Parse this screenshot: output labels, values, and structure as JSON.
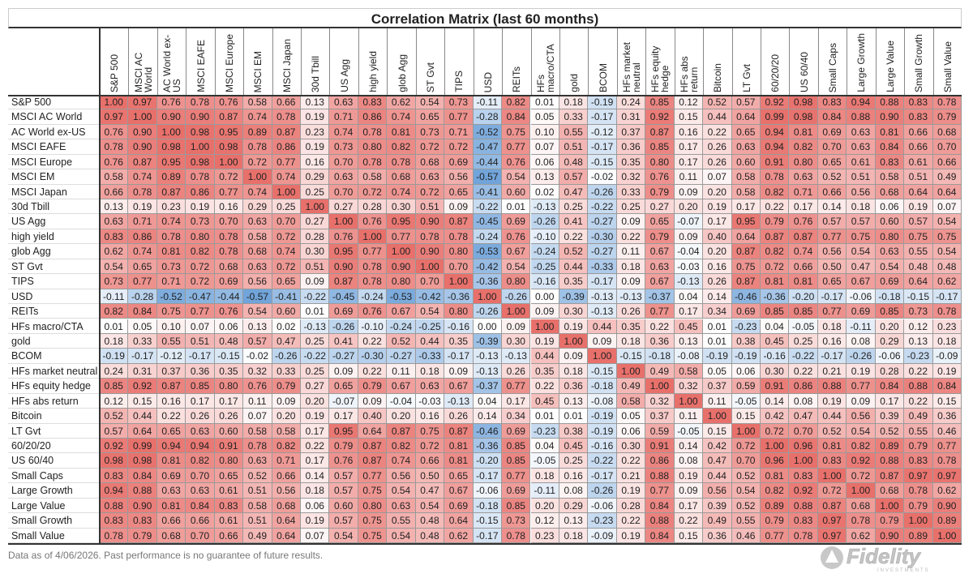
{
  "chart_data": {
    "type": "heatmap",
    "title": "Correlation Matrix (last 60 months)",
    "labels": [
      "S&P 500",
      "MSCI AC World",
      "AC World ex-US",
      "MSCI EAFE",
      "MSCI Europe",
      "MSCI EM",
      "MSCI Japan",
      "30d Tbill",
      "US Agg",
      "high yield",
      "glob Agg",
      "ST Gvt",
      "TIPS",
      "USD",
      "REITs",
      "HFs macro/CTA",
      "gold",
      "BCOM",
      "HFs market neutral",
      "HFs equity hedge",
      "HFs abs return",
      "Bitcoin",
      "LT Gvt",
      "60/20/20",
      "US 60/40",
      "Small Caps",
      "Large Growth",
      "Large Value",
      "Small Growth",
      "Small Value"
    ],
    "column_labels": [
      "S&P 500",
      "MSCI AC World",
      "AC World ex-US",
      "MSCI EAFE",
      "MSCI Europe",
      "MSCI EM",
      "MSCI Japan",
      "30d Tbill",
      "US Agg",
      "high yield",
      "glob Agg",
      "ST Gvt",
      "TIPS",
      "USD",
      "REITs",
      "HFs macro/CTA",
      "gold",
      "BCOM",
      "HFs market neutral",
      "HFs equity hedge",
      "HFs abs return",
      "Bitcoin",
      "LT Gvt",
      "60/20/20",
      "US 60/40",
      "Small Caps",
      "Large Growth",
      "Large Value",
      "Small Growth",
      "Small Value"
    ],
    "values": [
      [
        1.0,
        0.97,
        0.76,
        0.78,
        0.76,
        0.58,
        0.66,
        0.13,
        0.63,
        0.83,
        0.62,
        0.54,
        0.73,
        -0.11,
        0.82,
        0.01,
        0.18,
        -0.19,
        0.24,
        0.85,
        0.12,
        0.52,
        0.57,
        0.92,
        0.98,
        0.83,
        0.94,
        0.88,
        0.83,
        0.78
      ],
      [
        0.97,
        1.0,
        0.9,
        0.9,
        0.87,
        0.74,
        0.78,
        0.19,
        0.71,
        0.86,
        0.74,
        0.65,
        0.77,
        -0.28,
        0.84,
        0.05,
        0.33,
        -0.17,
        0.31,
        0.92,
        0.15,
        0.44,
        0.64,
        0.99,
        0.98,
        0.84,
        0.88,
        0.9,
        0.83,
        0.79
      ],
      [
        0.76,
        0.9,
        1.0,
        0.98,
        0.95,
        0.89,
        0.87,
        0.23,
        0.74,
        0.78,
        0.81,
        0.73,
        0.71,
        -0.52,
        0.75,
        0.1,
        0.55,
        -0.12,
        0.37,
        0.87,
        0.16,
        0.22,
        0.65,
        0.94,
        0.81,
        0.69,
        0.63,
        0.81,
        0.66,
        0.68
      ],
      [
        0.78,
        0.9,
        0.98,
        1.0,
        0.98,
        0.78,
        0.86,
        0.19,
        0.73,
        0.8,
        0.82,
        0.72,
        0.72,
        -0.47,
        0.77,
        0.07,
        0.51,
        -0.17,
        0.36,
        0.85,
        0.17,
        0.26,
        0.63,
        0.94,
        0.82,
        0.7,
        0.63,
        0.84,
        0.66,
        0.7
      ],
      [
        0.76,
        0.87,
        0.95,
        0.98,
        1.0,
        0.72,
        0.77,
        0.16,
        0.7,
        0.78,
        0.78,
        0.68,
        0.69,
        -0.44,
        0.76,
        0.06,
        0.48,
        -0.15,
        0.35,
        0.8,
        0.17,
        0.26,
        0.6,
        0.91,
        0.8,
        0.65,
        0.61,
        0.83,
        0.61,
        0.66
      ],
      [
        0.58,
        0.74,
        0.89,
        0.78,
        0.72,
        1.0,
        0.74,
        0.29,
        0.63,
        0.58,
        0.68,
        0.63,
        0.56,
        -0.57,
        0.54,
        0.13,
        0.57,
        -0.02,
        0.32,
        0.76,
        0.11,
        0.07,
        0.58,
        0.78,
        0.63,
        0.52,
        0.51,
        0.58,
        0.51,
        0.49
      ],
      [
        0.66,
        0.78,
        0.87,
        0.86,
        0.77,
        0.74,
        1.0,
        0.25,
        0.7,
        0.72,
        0.74,
        0.72,
        0.65,
        -0.41,
        0.6,
        0.02,
        0.47,
        -0.26,
        0.33,
        0.79,
        0.09,
        0.2,
        0.58,
        0.82,
        0.71,
        0.66,
        0.56,
        0.68,
        0.64,
        0.64
      ],
      [
        0.13,
        0.19,
        0.23,
        0.19,
        0.16,
        0.29,
        0.25,
        1.0,
        0.27,
        0.28,
        0.3,
        0.51,
        0.09,
        -0.22,
        0.01,
        -0.13,
        0.25,
        -0.22,
        0.25,
        0.27,
        0.2,
        0.19,
        0.17,
        0.22,
        0.17,
        0.14,
        0.18,
        0.06,
        0.19,
        0.07
      ],
      [
        0.63,
        0.71,
        0.74,
        0.73,
        0.7,
        0.63,
        0.7,
        0.27,
        1.0,
        0.76,
        0.95,
        0.9,
        0.87,
        -0.45,
        0.69,
        -0.26,
        0.41,
        -0.27,
        0.09,
        0.65,
        -0.07,
        0.17,
        0.95,
        0.79,
        0.76,
        0.57,
        0.57,
        0.6,
        0.57,
        0.54
      ],
      [
        0.83,
        0.86,
        0.78,
        0.8,
        0.78,
        0.58,
        0.72,
        0.28,
        0.76,
        1.0,
        0.77,
        0.78,
        0.78,
        -0.24,
        0.76,
        -0.1,
        0.22,
        -0.3,
        0.22,
        0.79,
        0.09,
        0.4,
        0.64,
        0.87,
        0.87,
        0.77,
        0.75,
        0.8,
        0.75,
        0.75
      ],
      [
        0.62,
        0.74,
        0.81,
        0.82,
        0.78,
        0.68,
        0.74,
        0.3,
        0.95,
        0.77,
        1.0,
        0.9,
        0.8,
        -0.53,
        0.67,
        -0.24,
        0.52,
        -0.27,
        0.11,
        0.67,
        -0.04,
        0.2,
        0.87,
        0.82,
        0.74,
        0.56,
        0.54,
        0.63,
        0.55,
        0.54
      ],
      [
        0.54,
        0.65,
        0.73,
        0.72,
        0.68,
        0.63,
        0.72,
        0.51,
        0.9,
        0.78,
        0.9,
        1.0,
        0.7,
        -0.42,
        0.54,
        -0.25,
        0.44,
        -0.33,
        0.18,
        0.63,
        -0.03,
        0.16,
        0.75,
        0.72,
        0.66,
        0.5,
        0.47,
        0.54,
        0.48,
        0.48
      ],
      [
        0.73,
        0.77,
        0.71,
        0.72,
        0.69,
        0.56,
        0.65,
        0.09,
        0.87,
        0.78,
        0.8,
        0.7,
        1.0,
        -0.36,
        0.8,
        -0.16,
        0.35,
        -0.17,
        0.09,
        0.67,
        -0.13,
        0.26,
        0.87,
        0.81,
        0.81,
        0.65,
        0.67,
        0.69,
        0.64,
        0.62
      ],
      [
        -0.11,
        -0.28,
        -0.52,
        -0.47,
        -0.44,
        -0.57,
        -0.41,
        -0.22,
        -0.45,
        -0.24,
        -0.53,
        -0.42,
        -0.36,
        1.0,
        -0.26,
        0.0,
        -0.39,
        -0.13,
        -0.13,
        -0.37,
        0.04,
        0.14,
        -0.46,
        -0.36,
        -0.2,
        -0.17,
        -0.06,
        -0.18,
        -0.15,
        -0.17
      ],
      [
        0.82,
        0.84,
        0.75,
        0.77,
        0.76,
        0.54,
        0.6,
        0.01,
        0.69,
        0.76,
        0.67,
        0.54,
        0.8,
        -0.26,
        1.0,
        0.09,
        0.3,
        -0.13,
        0.26,
        0.77,
        0.17,
        0.34,
        0.69,
        0.85,
        0.85,
        0.77,
        0.69,
        0.85,
        0.73,
        0.78
      ],
      [
        0.01,
        0.05,
        0.1,
        0.07,
        0.06,
        0.13,
        0.02,
        -0.13,
        -0.26,
        -0.1,
        -0.24,
        -0.25,
        -0.16,
        0.0,
        0.09,
        1.0,
        0.19,
        0.44,
        0.35,
        0.22,
        0.45,
        0.01,
        -0.23,
        0.04,
        -0.05,
        0.18,
        -0.11,
        0.2,
        0.12,
        0.23
      ],
      [
        0.18,
        0.33,
        0.55,
        0.51,
        0.48,
        0.57,
        0.47,
        0.25,
        0.41,
        0.22,
        0.52,
        0.44,
        0.35,
        -0.39,
        0.3,
        0.19,
        1.0,
        0.09,
        0.18,
        0.36,
        0.13,
        0.01,
        0.38,
        0.45,
        0.25,
        0.16,
        0.08,
        0.29,
        0.13,
        0.18
      ],
      [
        -0.19,
        -0.17,
        -0.12,
        -0.17,
        -0.15,
        -0.02,
        -0.26,
        -0.22,
        -0.27,
        -0.3,
        -0.27,
        -0.33,
        -0.17,
        -0.13,
        -0.13,
        0.44,
        0.09,
        1.0,
        -0.15,
        -0.18,
        -0.08,
        -0.19,
        -0.19,
        -0.16,
        -0.22,
        -0.17,
        -0.26,
        -0.06,
        -0.23,
        -0.09
      ],
      [
        0.24,
        0.31,
        0.37,
        0.36,
        0.35,
        0.32,
        0.33,
        0.25,
        0.09,
        0.22,
        0.11,
        0.18,
        0.09,
        -0.13,
        0.26,
        0.35,
        0.18,
        -0.15,
        1.0,
        0.49,
        0.58,
        0.05,
        0.06,
        0.3,
        0.22,
        0.21,
        0.19,
        0.28,
        0.22,
        0.19
      ],
      [
        0.85,
        0.92,
        0.87,
        0.85,
        0.8,
        0.76,
        0.79,
        0.27,
        0.65,
        0.79,
        0.67,
        0.63,
        0.67,
        -0.37,
        0.77,
        0.22,
        0.36,
        -0.18,
        0.49,
        1.0,
        0.32,
        0.37,
        0.59,
        0.91,
        0.86,
        0.88,
        0.77,
        0.84,
        0.88,
        0.84
      ],
      [
        0.12,
        0.15,
        0.16,
        0.17,
        0.17,
        0.11,
        0.09,
        0.2,
        -0.07,
        0.09,
        -0.04,
        -0.03,
        -0.13,
        0.04,
        0.17,
        0.45,
        0.13,
        -0.08,
        0.58,
        0.32,
        1.0,
        0.11,
        -0.05,
        0.14,
        0.08,
        0.19,
        0.09,
        0.17,
        0.22,
        0.15
      ],
      [
        0.52,
        0.44,
        0.22,
        0.26,
        0.26,
        0.07,
        0.2,
        0.19,
        0.17,
        0.4,
        0.2,
        0.16,
        0.26,
        0.14,
        0.34,
        0.01,
        0.01,
        -0.19,
        0.05,
        0.37,
        0.11,
        1.0,
        0.15,
        0.42,
        0.47,
        0.44,
        0.56,
        0.39,
        0.49,
        0.36
      ],
      [
        0.57,
        0.64,
        0.65,
        0.63,
        0.6,
        0.58,
        0.58,
        0.17,
        0.95,
        0.64,
        0.87,
        0.75,
        0.87,
        -0.46,
        0.69,
        -0.23,
        0.38,
        -0.19,
        0.06,
        0.59,
        -0.05,
        0.15,
        1.0,
        0.72,
        0.7,
        0.52,
        0.54,
        0.52,
        0.55,
        0.46
      ],
      [
        0.92,
        0.99,
        0.94,
        0.94,
        0.91,
        0.78,
        0.82,
        0.22,
        0.79,
        0.87,
        0.82,
        0.72,
        0.81,
        -0.36,
        0.85,
        0.04,
        0.45,
        -0.16,
        0.3,
        0.91,
        0.14,
        0.42,
        0.72,
        1.0,
        0.96,
        0.81,
        0.82,
        0.89,
        0.79,
        0.77
      ],
      [
        0.98,
        0.98,
        0.81,
        0.82,
        0.8,
        0.63,
        0.71,
        0.17,
        0.76,
        0.87,
        0.74,
        0.66,
        0.81,
        -0.2,
        0.85,
        -0.05,
        0.25,
        -0.22,
        0.22,
        0.86,
        0.08,
        0.47,
        0.7,
        0.96,
        1.0,
        0.83,
        0.92,
        0.88,
        0.83,
        0.78
      ],
      [
        0.83,
        0.84,
        0.69,
        0.7,
        0.65,
        0.52,
        0.66,
        0.14,
        0.57,
        0.77,
        0.56,
        0.5,
        0.65,
        -0.17,
        0.77,
        0.18,
        0.16,
        -0.17,
        0.21,
        0.88,
        0.19,
        0.44,
        0.52,
        0.81,
        0.83,
        1.0,
        0.72,
        0.87,
        0.97,
        0.97
      ],
      [
        0.94,
        0.88,
        0.63,
        0.63,
        0.61,
        0.51,
        0.56,
        0.18,
        0.57,
        0.75,
        0.54,
        0.47,
        0.67,
        -0.06,
        0.69,
        -0.11,
        0.08,
        -0.26,
        0.19,
        0.77,
        0.09,
        0.56,
        0.54,
        0.82,
        0.92,
        0.72,
        1.0,
        0.68,
        0.78,
        0.62
      ],
      [
        0.88,
        0.9,
        0.81,
        0.84,
        0.83,
        0.58,
        0.68,
        0.06,
        0.6,
        0.8,
        0.63,
        0.54,
        0.69,
        -0.18,
        0.85,
        0.2,
        0.29,
        -0.06,
        0.28,
        0.84,
        0.17,
        0.39,
        0.52,
        0.89,
        0.88,
        0.87,
        0.68,
        1.0,
        0.79,
        0.9
      ],
      [
        0.83,
        0.83,
        0.66,
        0.66,
        0.61,
        0.51,
        0.64,
        0.19,
        0.57,
        0.75,
        0.55,
        0.48,
        0.64,
        -0.15,
        0.73,
        0.12,
        0.13,
        -0.23,
        0.22,
        0.88,
        0.22,
        0.49,
        0.55,
        0.79,
        0.83,
        0.97,
        0.78,
        0.79,
        1.0,
        0.89
      ],
      [
        0.78,
        0.79,
        0.68,
        0.7,
        0.66,
        0.49,
        0.64,
        0.07,
        0.54,
        0.75,
        0.54,
        0.48,
        0.62,
        -0.17,
        0.78,
        0.23,
        0.18,
        -0.09,
        0.19,
        0.84,
        0.15,
        0.36,
        0.46,
        0.77,
        0.78,
        0.97,
        0.62,
        0.9,
        0.89,
        1.0
      ]
    ],
    "color_scale": {
      "negative": "#6a9fd8",
      "zero": "#ffffff",
      "positive": "#e8706b"
    },
    "grid": true,
    "legend": "none"
  },
  "footer": {
    "note": "Data as of 4/06/2026. Past performance is no guarantee of future results."
  },
  "logo": {
    "brand": "Fidelity",
    "sub": "INVESTMENTS"
  }
}
